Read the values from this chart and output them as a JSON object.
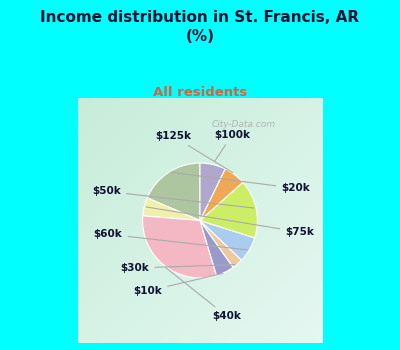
{
  "title": "Income distribution in St. Francis, AR\n(%)",
  "subtitle": "All residents",
  "title_color": "#111133",
  "subtitle_color": "#cc6644",
  "bg_color": "#00ffff",
  "chart_bg_top_left": "#c8e8d8",
  "chart_bg_bottom_right": "#e8f8f0",
  "labels": [
    "$20k",
    "$75k",
    "$40k",
    "$10k",
    "$30k",
    "$60k",
    "$50k",
    "$125k",
    "$100k"
  ],
  "values": [
    18,
    5,
    30,
    5,
    3,
    7,
    16,
    6,
    7
  ],
  "colors": [
    "#aec6a0",
    "#f0f0aa",
    "#f4b8c4",
    "#9999cc",
    "#f0c8a0",
    "#aaccee",
    "#ccee66",
    "#f0a855",
    "#b0a8cc"
  ],
  "startangle": 90,
  "wedge_edge_color": "white",
  "label_fontsize": 7.5,
  "watermark": "City-Data.com"
}
